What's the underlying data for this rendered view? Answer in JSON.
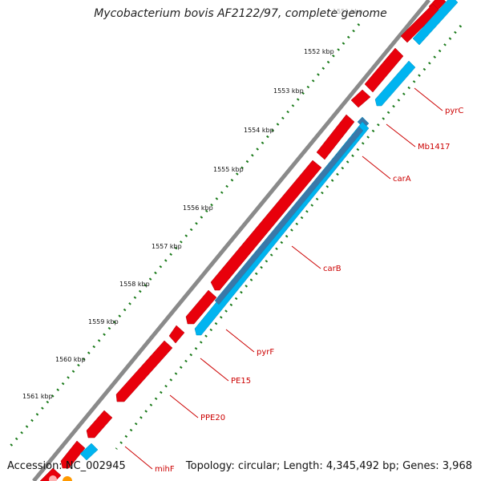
{
  "title": "Mycobacterium bovis AF2122/97, complete genome",
  "footer": {
    "accession": "Accession: NC_002945",
    "summary": "Topology: circular; Length: 4,345,492 bp; Genes: 3,968"
  },
  "colors": {
    "backbone": "#8a8a8a",
    "forward_gene": "#e8000b",
    "reverse_gene": "#00b4f0",
    "reverse_gene_dark": "#3a78a8",
    "tick": "#1a7a1a",
    "label_text": "#cc0000"
  },
  "scale": {
    "ticks": [
      {
        "label": "1551 kbp"
      },
      {
        "label": "1552 kbp"
      },
      {
        "label": "1553 kbp"
      },
      {
        "label": "1554 kbp"
      },
      {
        "label": "1555 kbp"
      },
      {
        "label": "1556 kbp"
      },
      {
        "label": "1557 kbp"
      },
      {
        "label": "1558 kbp"
      },
      {
        "label": "1559 kbp"
      },
      {
        "label": "1560 kbp"
      },
      {
        "label": "1561 kbp"
      }
    ]
  },
  "gene_labels": [
    {
      "name": "pyrC"
    },
    {
      "name": "Mb1417"
    },
    {
      "name": "carA"
    },
    {
      "name": "carB"
    },
    {
      "name": "pyrF"
    },
    {
      "name": "PE15"
    },
    {
      "name": "PPE20"
    },
    {
      "name": "mihF"
    }
  ]
}
